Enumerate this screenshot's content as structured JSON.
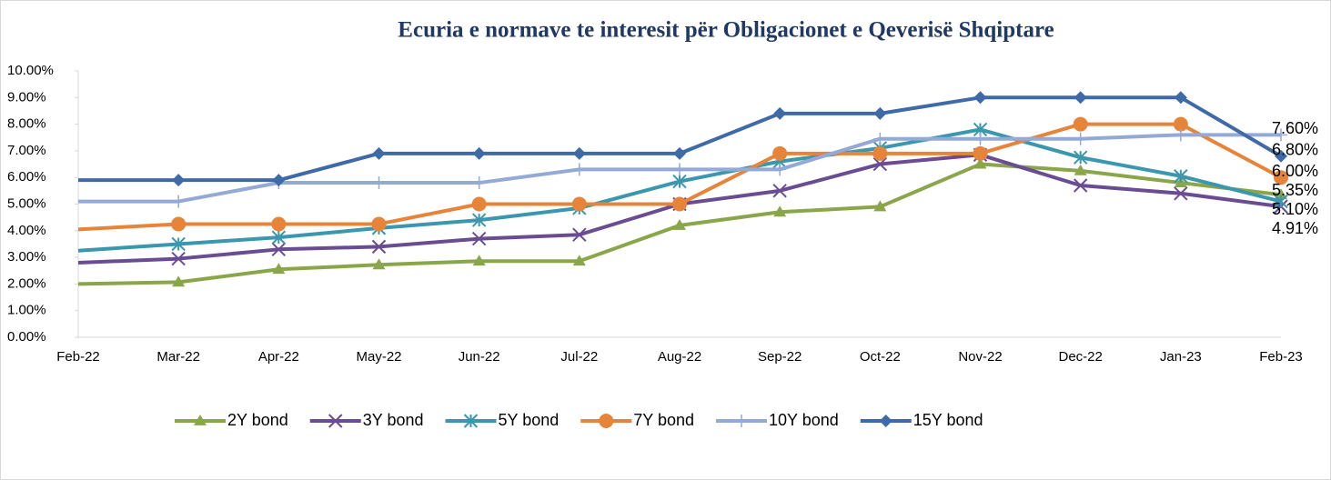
{
  "chart_data": {
    "type": "line",
    "title": "Ecuria e normave te interesit për Obligacionet e Qeverisë Shqiptare",
    "categories": [
      "Feb-22",
      "Mar-22",
      "Apr-22",
      "May-22",
      "Jun-22",
      "Jul-22",
      "Aug-22",
      "Sep-22",
      "Oct-22",
      "Nov-22",
      "Dec-22",
      "Jan-23",
      "Feb-23"
    ],
    "ylim": [
      0,
      10
    ],
    "yticks": [
      {
        "value": 0,
        "label": "0.00%"
      },
      {
        "value": 1,
        "label": "1.00%"
      },
      {
        "value": 2,
        "label": "2.00%"
      },
      {
        "value": 3,
        "label": "3.00%"
      },
      {
        "value": 4,
        "label": "4.00%"
      },
      {
        "value": 5,
        "label": "5.00%"
      },
      {
        "value": 6,
        "label": "6.00%"
      },
      {
        "value": 7,
        "label": "7.00%"
      },
      {
        "value": 8,
        "label": "8.00%"
      },
      {
        "value": 9,
        "label": "9.00%"
      },
      {
        "value": 10,
        "label": "10.00%"
      }
    ],
    "grid": false,
    "legend": "bottom",
    "series": [
      {
        "name": "2Y bond",
        "color": "#8aa64a",
        "marker": "triangle",
        "values": [
          2.0,
          2.07,
          2.55,
          2.72,
          2.86,
          2.86,
          4.2,
          4.7,
          4.9,
          6.5,
          6.25,
          5.8,
          5.35
        ],
        "value_labels": [
          null,
          null,
          null,
          null,
          null,
          null,
          null,
          null,
          null,
          null,
          null,
          null,
          "5.35%"
        ]
      },
      {
        "name": "3Y bond",
        "color": "#6a4c93",
        "marker": "x",
        "values": [
          2.8,
          2.95,
          3.3,
          3.4,
          3.7,
          3.85,
          5.0,
          5.5,
          6.5,
          6.85,
          5.7,
          5.4,
          4.91
        ],
        "value_labels": [
          null,
          null,
          null,
          null,
          null,
          null,
          null,
          null,
          null,
          null,
          null,
          null,
          "4.91%"
        ]
      },
      {
        "name": "5Y bond",
        "color": "#3a97ad",
        "marker": "asterisk",
        "values": [
          3.25,
          3.5,
          3.75,
          4.1,
          4.4,
          4.85,
          5.85,
          6.6,
          7.1,
          7.8,
          6.75,
          6.05,
          5.1
        ],
        "value_labels": [
          null,
          null,
          null,
          null,
          null,
          null,
          null,
          null,
          null,
          null,
          null,
          null,
          "5.10%"
        ]
      },
      {
        "name": "7Y bond",
        "color": "#e6843a",
        "marker": "circle",
        "values": [
          4.05,
          4.25,
          4.25,
          4.25,
          5.0,
          5.0,
          5.0,
          6.9,
          6.9,
          6.9,
          8.0,
          8.0,
          6.0
        ],
        "value_labels": [
          null,
          null,
          null,
          null,
          null,
          null,
          null,
          null,
          null,
          null,
          null,
          null,
          "6.00%"
        ]
      },
      {
        "name": "10Y bond",
        "color": "#93a9d6",
        "marker": "plus",
        "values": [
          5.1,
          5.1,
          5.8,
          5.8,
          5.8,
          6.3,
          6.3,
          6.3,
          7.45,
          7.45,
          7.45,
          7.6,
          7.6
        ],
        "value_labels": [
          null,
          null,
          null,
          null,
          null,
          null,
          null,
          null,
          null,
          null,
          null,
          null,
          "7.60%"
        ]
      },
      {
        "name": "15Y bond",
        "color": "#3f6aa8",
        "marker": "diamond",
        "values": [
          5.9,
          5.9,
          5.9,
          6.9,
          6.9,
          6.9,
          6.9,
          8.4,
          8.4,
          9.0,
          9.0,
          9.0,
          6.8
        ],
        "value_labels": [
          null,
          null,
          null,
          null,
          null,
          null,
          null,
          null,
          null,
          null,
          null,
          null,
          "6.80%"
        ]
      }
    ]
  }
}
